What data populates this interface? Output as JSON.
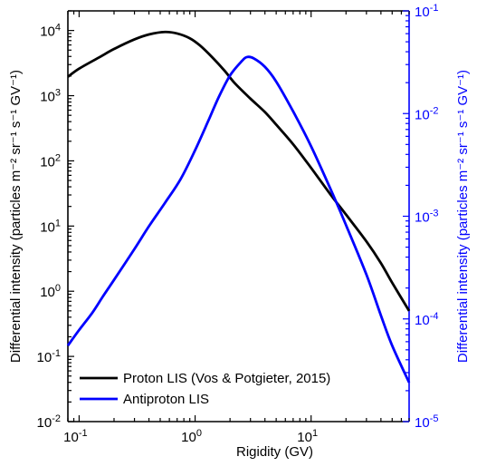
{
  "chart_data": {
    "type": "line",
    "xlabel": "Rigidity (GV)",
    "ylabel_left": "Differential intensity (particles m⁻² sr⁻¹ s⁻¹ GV⁻¹)",
    "ylabel_right": "Differential intensity (particles m⁻² sr⁻¹ s⁻¹ GV⁻¹)",
    "x_scale": "log",
    "y_scale": "log",
    "xlim": [
      0.08,
      70
    ],
    "ylim_left": [
      0.01,
      20000
    ],
    "ylim_right": [
      1e-05,
      0.1
    ],
    "grid": false,
    "legend_position": "bottom-left",
    "x_ticks": [
      {
        "value": 0.1,
        "base": "10",
        "exp": "-1"
      },
      {
        "value": 1,
        "base": "10",
        "exp": "0"
      },
      {
        "value": 10,
        "base": "10",
        "exp": "1"
      }
    ],
    "y_left_ticks": [
      {
        "value": 0.01,
        "base": "10",
        "exp": "-2"
      },
      {
        "value": 0.1,
        "base": "10",
        "exp": "-1"
      },
      {
        "value": 1,
        "base": "10",
        "exp": "0"
      },
      {
        "value": 10,
        "base": "10",
        "exp": "1"
      },
      {
        "value": 100,
        "base": "10",
        "exp": "2"
      },
      {
        "value": 1000,
        "base": "10",
        "exp": "3"
      },
      {
        "value": 10000,
        "base": "10",
        "exp": "4"
      }
    ],
    "y_right_ticks": [
      {
        "value": 1e-05,
        "base": "10",
        "exp": "-5"
      },
      {
        "value": 0.0001,
        "base": "10",
        "exp": "-4"
      },
      {
        "value": 0.001,
        "base": "10",
        "exp": "-3"
      },
      {
        "value": 0.01,
        "base": "10",
        "exp": "-2"
      },
      {
        "value": 0.1,
        "base": "10",
        "exp": "-1"
      }
    ],
    "series": [
      {
        "name": "Proton LIS (Vos & Potgieter, 2015)",
        "axis": "left",
        "color": "#000000",
        "x": [
          0.08,
          0.1,
          0.15,
          0.2,
          0.3,
          0.4,
          0.55,
          0.7,
          0.9,
          1.1,
          1.4,
          1.8,
          2.2,
          3,
          4,
          5,
          7,
          10,
          15,
          20,
          30,
          40,
          50,
          70
        ],
        "y": [
          1950,
          2600,
          3900,
          5200,
          7300,
          8700,
          9500,
          9000,
          7600,
          5900,
          3900,
          2400,
          1550,
          900,
          560,
          360,
          180,
          78,
          29,
          15,
          5.8,
          2.7,
          1.35,
          0.5
        ]
      },
      {
        "name": "Antiproton LIS",
        "axis": "right",
        "color": "#0000ff",
        "x": [
          0.08,
          0.1,
          0.13,
          0.16,
          0.2,
          0.3,
          0.4,
          0.55,
          0.75,
          1.0,
          1.3,
          1.6,
          2.0,
          2.5,
          2.8,
          3.2,
          4,
          5,
          7,
          10,
          15,
          20,
          30,
          40,
          50,
          70
        ],
        "y": [
          5.5e-05,
          7.8e-05,
          0.000115,
          0.000165,
          0.00024,
          0.00048,
          0.0008,
          0.00135,
          0.0023,
          0.0044,
          0.0085,
          0.0145,
          0.0235,
          0.032,
          0.0355,
          0.0345,
          0.0285,
          0.0205,
          0.0105,
          0.0048,
          0.00175,
          0.00082,
          0.00027,
          0.000108,
          5.5e-05,
          2.4e-05
        ]
      }
    ]
  }
}
